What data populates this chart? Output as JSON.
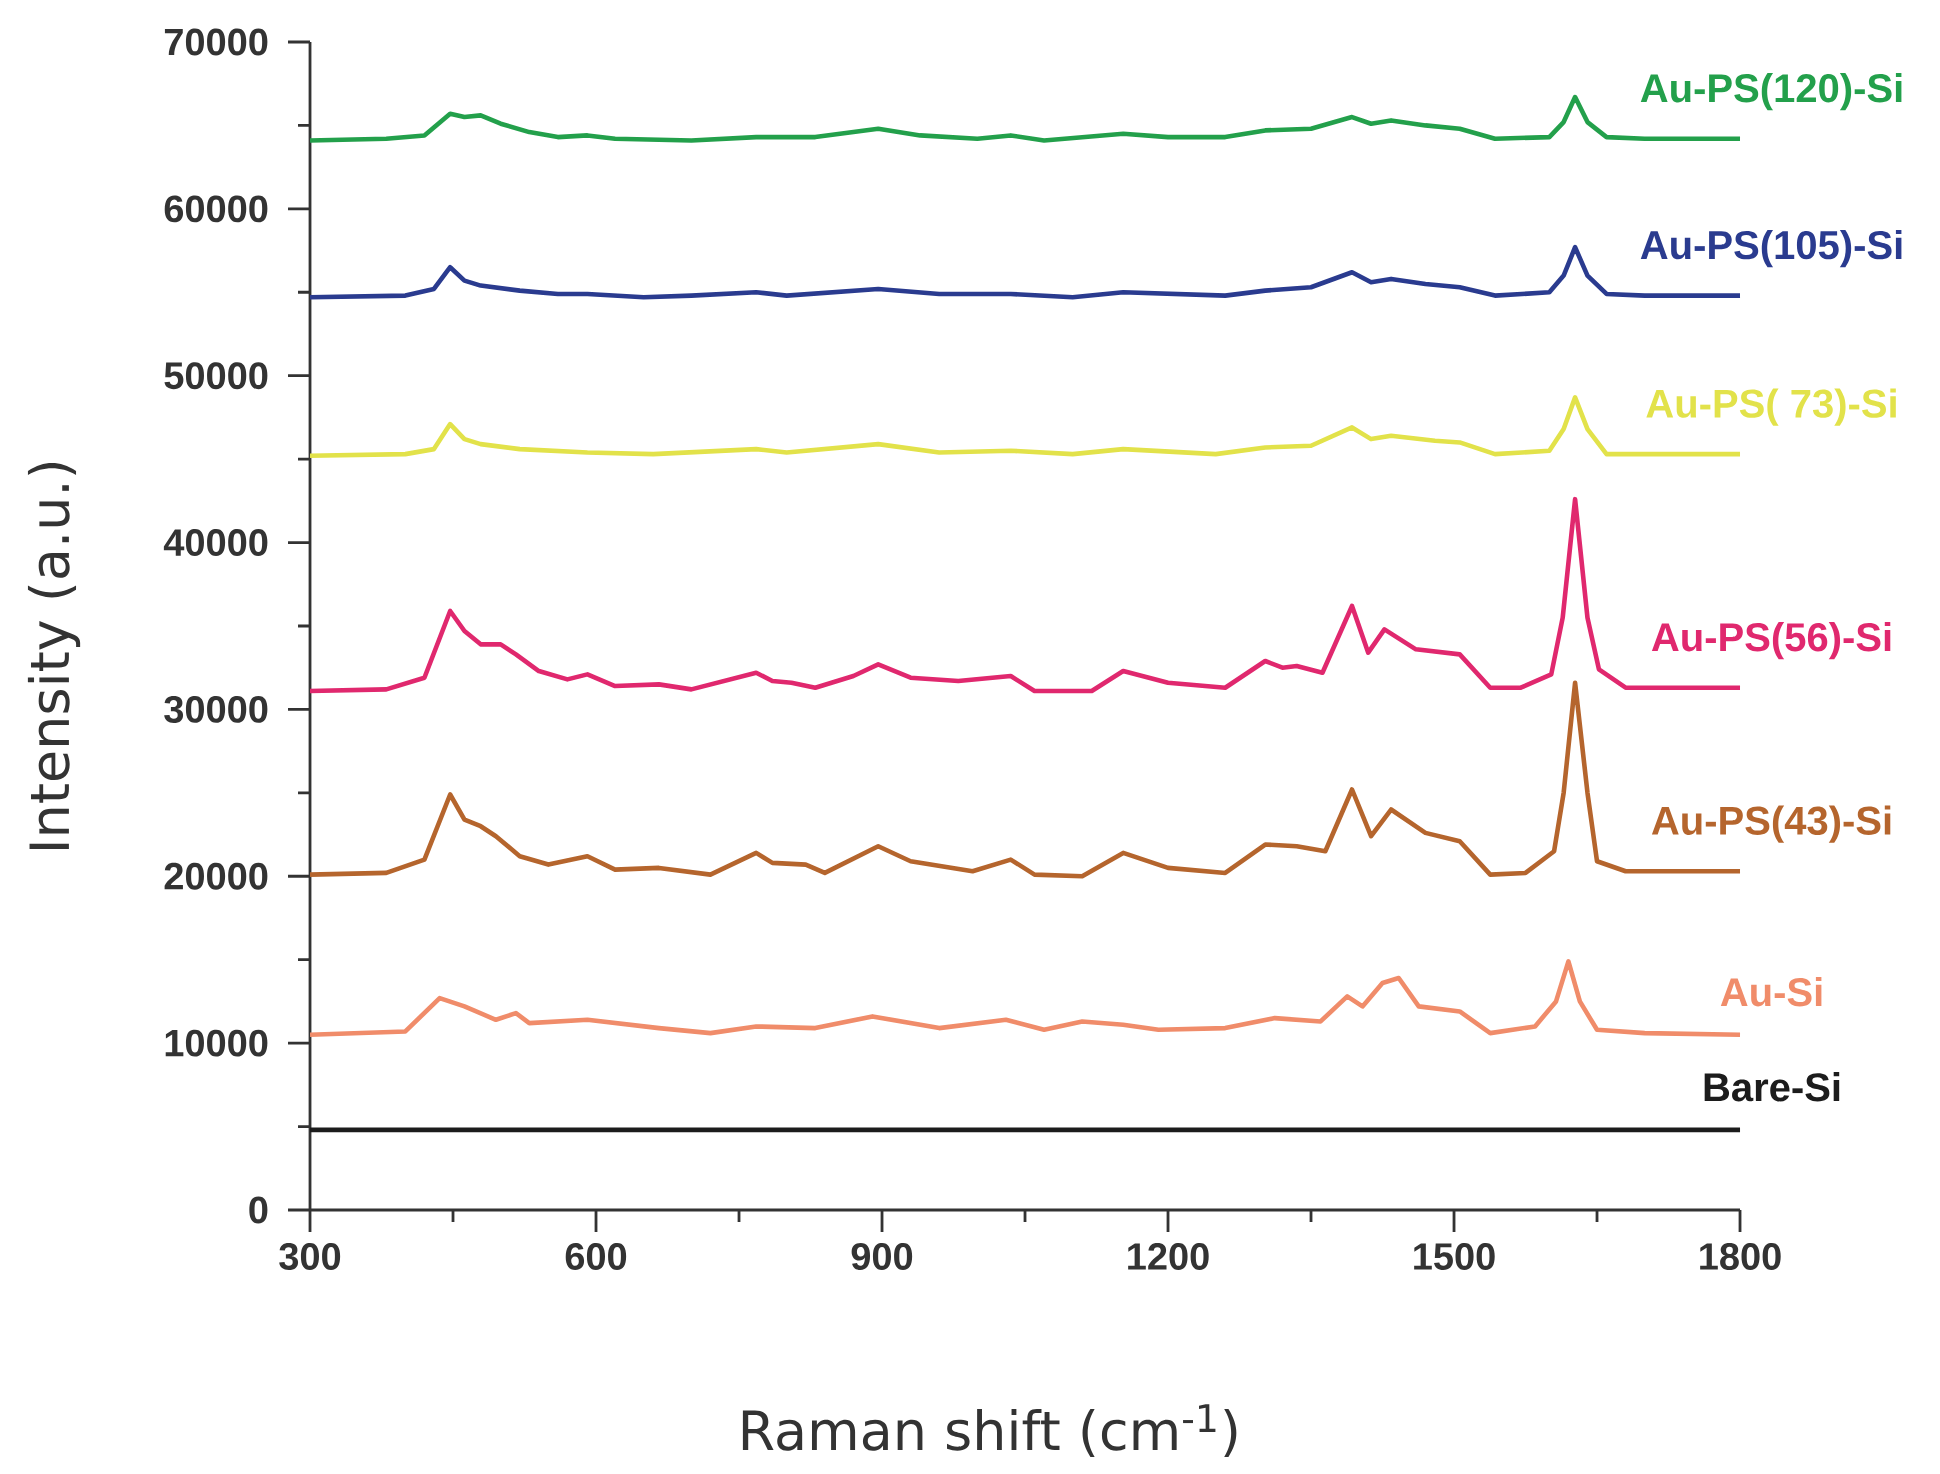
{
  "chart_data": {
    "type": "line",
    "xlabel": "Raman shift (cm$^{-1}$)",
    "ylabel": "Intensity (a.u.)",
    "xlim": [
      300,
      1800
    ],
    "ylim": [
      0,
      70000
    ],
    "xticks": [
      300,
      {
        "value": 450,
        "label": null
      },
      600,
      {
        "value": 750,
        "label": null
      },
      900,
      {
        "value": 1050,
        "label": null
      },
      1200,
      {
        "value": 1350,
        "label": null
      },
      1500,
      {
        "value": 1650,
        "label": null
      },
      1800
    ],
    "yticks": [
      0,
      {
        "value": 5000,
        "label": null
      },
      10000,
      {
        "value": 15000,
        "label": null
      },
      20000,
      {
        "value": 25000,
        "label": null
      },
      30000,
      {
        "value": 35000,
        "label": null
      },
      40000,
      {
        "value": 45000,
        "label": null
      },
      50000,
      {
        "value": 55000,
        "label": null
      },
      60000,
      {
        "value": 65000,
        "label": null
      },
      70000
    ],
    "line_style": "solid",
    "series": [
      {
        "name": "Au-PS(120)-Si",
        "color": "#23a04b",
        "x": [
          300,
          380,
          420,
          447,
          462,
          479,
          500,
          530,
          560,
          591,
          620,
          700,
          768,
          830,
          896,
          940,
          1000,
          1035,
          1070,
          1153,
          1200,
          1260,
          1302,
          1350,
          1393,
          1413,
          1434,
          1470,
          1506,
          1543,
          1600,
          1615,
          1627,
          1640,
          1660,
          1700,
          1800
        ],
        "values": [
          64100,
          64200,
          64400,
          65700,
          65500,
          65600,
          65100,
          64600,
          64300,
          64400,
          64200,
          64100,
          64300,
          64300,
          64800,
          64400,
          64200,
          64400,
          64100,
          64500,
          64300,
          64300,
          64700,
          64800,
          65500,
          65100,
          65300,
          65000,
          64800,
          64200,
          64300,
          65200,
          66700,
          65200,
          64300,
          64200,
          64200
        ]
      },
      {
        "name": "Au-PS(105)-Si",
        "color": "#2a3b8f",
        "x": [
          300,
          400,
          430,
          447,
          462,
          479,
          520,
          560,
          591,
          650,
          700,
          768,
          800,
          896,
          960,
          1035,
          1100,
          1153,
          1260,
          1302,
          1350,
          1393,
          1413,
          1434,
          1470,
          1506,
          1543,
          1600,
          1615,
          1627,
          1640,
          1660,
          1700,
          1800
        ],
        "values": [
          54700,
          54800,
          55200,
          56500,
          55700,
          55400,
          55100,
          54900,
          54900,
          54700,
          54800,
          55000,
          54800,
          55200,
          54900,
          54900,
          54700,
          55000,
          54800,
          55100,
          55300,
          56200,
          55600,
          55800,
          55500,
          55300,
          54800,
          55000,
          56000,
          57700,
          56000,
          54900,
          54800,
          54800
        ]
      },
      {
        "name": "Au-PS( 73)-Si",
        "color": "#e2e24a",
        "x": [
          300,
          400,
          430,
          447,
          462,
          479,
          520,
          591,
          660,
          768,
          800,
          896,
          960,
          1035,
          1100,
          1153,
          1250,
          1302,
          1350,
          1393,
          1413,
          1434,
          1480,
          1506,
          1543,
          1600,
          1615,
          1627,
          1640,
          1660,
          1700,
          1800
        ],
        "values": [
          45200,
          45300,
          45600,
          47100,
          46200,
          45900,
          45600,
          45400,
          45300,
          45600,
          45400,
          45900,
          45400,
          45500,
          45300,
          45600,
          45300,
          45700,
          45800,
          46900,
          46200,
          46400,
          46100,
          46000,
          45300,
          45500,
          46800,
          48700,
          46800,
          45300,
          45300,
          45300
        ]
      },
      {
        "name": "Au-PS(56)-Si",
        "color": "#e0286e",
        "x": [
          300,
          380,
          420,
          447,
          462,
          479,
          500,
          516,
          540,
          570,
          591,
          620,
          666,
          700,
          768,
          785,
          805,
          830,
          870,
          896,
          930,
          980,
          1035,
          1060,
          1120,
          1153,
          1200,
          1260,
          1302,
          1320,
          1335,
          1362,
          1393,
          1410,
          1427,
          1460,
          1506,
          1538,
          1570,
          1602,
          1614,
          1627,
          1640,
          1652,
          1680,
          1800
        ],
        "values": [
          31100,
          31200,
          31900,
          35900,
          34700,
          33900,
          33900,
          33300,
          32300,
          31800,
          32100,
          31400,
          31500,
          31200,
          32200,
          31700,
          31600,
          31300,
          32000,
          32700,
          31900,
          31700,
          32000,
          31100,
          31100,
          32300,
          31600,
          31300,
          32900,
          32500,
          32600,
          32200,
          36200,
          33400,
          34800,
          33600,
          33300,
          31300,
          31300,
          32100,
          35500,
          42600,
          35500,
          32400,
          31300,
          31300
        ]
      },
      {
        "name": "Au-PS(43)-Si",
        "color": "#b5652d",
        "x": [
          300,
          380,
          420,
          447,
          462,
          479,
          495,
          520,
          550,
          591,
          620,
          666,
          720,
          768,
          785,
          820,
          840,
          896,
          930,
          995,
          1035,
          1060,
          1110,
          1153,
          1200,
          1260,
          1302,
          1335,
          1365,
          1393,
          1413,
          1434,
          1470,
          1506,
          1538,
          1575,
          1605,
          1615,
          1627,
          1640,
          1650,
          1680,
          1800
        ],
        "values": [
          20100,
          20200,
          21000,
          24900,
          23400,
          23000,
          22400,
          21200,
          20700,
          21200,
          20400,
          20500,
          20100,
          21400,
          20800,
          20700,
          20200,
          21800,
          20900,
          20300,
          21000,
          20100,
          20000,
          21400,
          20500,
          20200,
          21900,
          21800,
          21500,
          25200,
          22400,
          24000,
          22600,
          22100,
          20100,
          20200,
          21500,
          25000,
          31600,
          25000,
          20900,
          20300,
          20300
        ]
      },
      {
        "name": "Au-Si",
        "color": "#f08c6a",
        "x": [
          300,
          400,
          436,
          462,
          495,
          516,
          530,
          591,
          666,
          720,
          768,
          830,
          890,
          960,
          1030,
          1070,
          1110,
          1153,
          1190,
          1260,
          1312,
          1360,
          1388,
          1404,
          1425,
          1442,
          1463,
          1506,
          1538,
          1585,
          1607,
          1620,
          1632,
          1650,
          1700,
          1800
        ],
        "values": [
          10500,
          10700,
          12700,
          12200,
          11400,
          11800,
          11200,
          11400,
          10900,
          10600,
          11000,
          10900,
          11600,
          10900,
          11400,
          10800,
          11300,
          11100,
          10800,
          10900,
          11500,
          11300,
          12800,
          12200,
          13600,
          13900,
          12200,
          11900,
          10600,
          11000,
          12500,
          14900,
          12500,
          10800,
          10600,
          10500
        ]
      },
      {
        "name": "Bare-Si",
        "color": "#1c1c1c",
        "x": [
          300,
          600,
          900,
          1200,
          1500,
          1800
        ],
        "values": [
          4800,
          4800,
          4800,
          4800,
          4800,
          4800
        ]
      }
    ]
  }
}
